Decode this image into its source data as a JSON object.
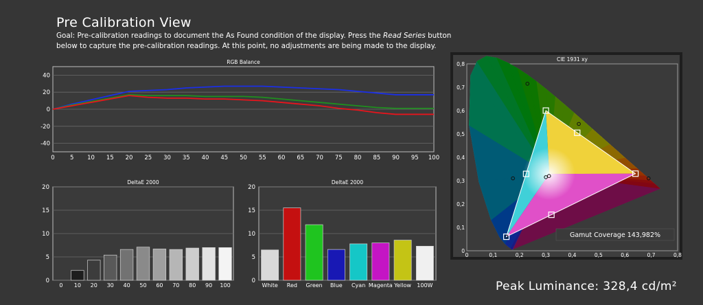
{
  "header": {
    "title": "Pre Calibration View",
    "goal_prefix": "Goal: Pre-calibration readings to document the As Found condition of the display. Press the ",
    "goal_emphasis": "Read Series",
    "goal_suffix": " button below to capture the pre-calibration readings. At this point, no adjustments are being made to the display."
  },
  "colors": {
    "background": "#363636",
    "plot_bg": "#3a3a3a",
    "grid": "#6a6a6a",
    "red": "#e8141c",
    "green": "#1f8f1f",
    "blue": "#1b2fe6"
  },
  "footer": {
    "peak_luminance": "Peak Luminance: 328,4 cd/m²"
  },
  "chart_data": [
    {
      "id": "rgb",
      "type": "line",
      "title": "RGB Balance",
      "xlabel": "",
      "ylabel": "",
      "x": [
        0,
        5,
        10,
        15,
        20,
        25,
        30,
        35,
        40,
        45,
        50,
        55,
        60,
        65,
        70,
        75,
        80,
        85,
        90,
        95,
        100
      ],
      "xticks": [
        "0",
        "5",
        "10",
        "15",
        "20",
        "25",
        "30",
        "35",
        "40",
        "45",
        "50",
        "55",
        "60",
        "65",
        "70",
        "75",
        "80",
        "85",
        "90",
        "95",
        "100"
      ],
      "yticks": [
        "40",
        "20",
        "0",
        "-20",
        "-40"
      ],
      "xlim": [
        0,
        100
      ],
      "ylim": [
        -50,
        50
      ],
      "grid": true,
      "series": [
        {
          "color": "#1b2fe6",
          "values": [
            0,
            6,
            11,
            16,
            21,
            22,
            23,
            25,
            26,
            27,
            27,
            27,
            26,
            25,
            24,
            23,
            21,
            19,
            17,
            17,
            17
          ]
        },
        {
          "color": "#1f8f1f",
          "values": [
            0,
            5,
            9,
            13,
            17,
            16,
            16,
            16,
            15,
            15,
            15,
            14,
            12,
            10,
            8,
            6,
            4,
            2,
            1,
            1,
            1
          ]
        },
        {
          "color": "#e8141c",
          "values": [
            0,
            4,
            8,
            12,
            16,
            14,
            13,
            13,
            12,
            12,
            11,
            10,
            8,
            6,
            4,
            1,
            -1,
            -4,
            -6,
            -6,
            -6
          ]
        }
      ]
    },
    {
      "id": "grey",
      "type": "bar",
      "title": "DeltaE 2000",
      "categories": [
        "0",
        "10",
        "20",
        "30",
        "40",
        "50",
        "60",
        "70",
        "80",
        "90",
        "100"
      ],
      "values": [
        0,
        2.1,
        4.3,
        5.4,
        6.6,
        7.1,
        6.7,
        6.6,
        6.9,
        7.0,
        7.0
      ],
      "ylim": [
        0,
        20
      ],
      "yticks": [
        "20",
        "15",
        "10",
        "5",
        "0"
      ],
      "colors": [
        "#000000",
        "#1e1e1e",
        "#3c3c3c",
        "#595959",
        "#727272",
        "#8a8a8a",
        "#9f9f9f",
        "#b6b6b6",
        "#cdcdcd",
        "#e3e3e3",
        "#f4f4f4"
      ]
    },
    {
      "id": "colors",
      "type": "bar",
      "title": "DeltaE 2000",
      "categories": [
        "White",
        "Red",
        "Green",
        "Blue",
        "Cyan",
        "Magenta",
        "Yellow",
        "100W"
      ],
      "values": [
        6.5,
        15.5,
        11.9,
        6.6,
        7.8,
        8.0,
        8.6,
        7.3
      ],
      "ylim": [
        0,
        20
      ],
      "yticks": [
        "20",
        "15",
        "10",
        "5",
        "0"
      ],
      "colors": [
        "#d9d9d9",
        "#c41010",
        "#1fc41f",
        "#1818b4",
        "#15c7c7",
        "#c415c4",
        "#c4c415",
        "#f0f0f0"
      ]
    },
    {
      "id": "cie",
      "type": "scatter",
      "title": "CIE 1931 xy",
      "xlim": [
        0,
        0.8
      ],
      "ylim": [
        0,
        0.8
      ],
      "xticks": [
        "0",
        "0,1",
        "0,2",
        "0,3",
        "0,4",
        "0,5",
        "0,6",
        "0,7",
        "0,8"
      ],
      "yticks": [
        "0,8",
        "0,7",
        "0,6",
        "0,5",
        "0,4",
        "0,3",
        "0,2",
        "0,1",
        "0"
      ],
      "target_gamut": [
        [
          0.64,
          0.33
        ],
        [
          0.3,
          0.6
        ],
        [
          0.15,
          0.06
        ]
      ],
      "target_white": [
        0.3127,
        0.329
      ],
      "targets": [
        [
          0.64,
          0.33
        ],
        [
          0.3,
          0.6
        ],
        [
          0.15,
          0.06
        ],
        [
          0.225,
          0.329
        ],
        [
          0.321,
          0.154
        ],
        [
          0.419,
          0.505
        ]
      ],
      "measured": [
        [
          0.69,
          0.31
        ],
        [
          0.23,
          0.715
        ],
        [
          0.15,
          0.06
        ],
        [
          0.175,
          0.31
        ],
        [
          0.312,
          0.32
        ],
        [
          0.425,
          0.543
        ],
        [
          0.3,
          0.315
        ]
      ],
      "annotation": "Gamut Coverage 143,982%"
    }
  ]
}
